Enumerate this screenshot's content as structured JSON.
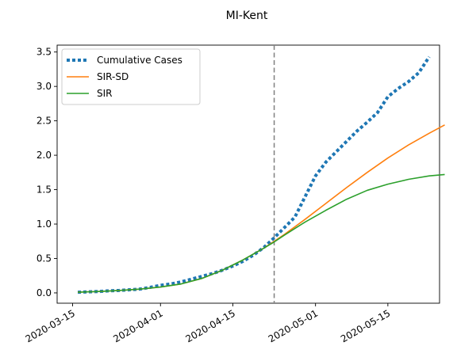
{
  "chart_data": {
    "type": "line",
    "title": "MI-Kent",
    "xlabel": "",
    "ylabel": "",
    "x_type": "date",
    "xlim": [
      "2020-03-12",
      "2020-05-25"
    ],
    "ylim": [
      -0.15,
      3.6
    ],
    "x_ticks": [
      "2020-03-15",
      "2020-04-01",
      "2020-04-15",
      "2020-05-01",
      "2020-05-15"
    ],
    "y_ticks": [
      0.0,
      0.5,
      1.0,
      1.5,
      2.0,
      2.5,
      3.0,
      3.5
    ],
    "y_tick_labels": [
      "0.0",
      "0.5",
      "1.0",
      "1.5",
      "2.0",
      "2.5",
      "3.0",
      "3.5"
    ],
    "grid": false,
    "legend_position": "upper-left",
    "vline": {
      "x": "2020-04-23",
      "style": "dashed",
      "color": "#808080"
    },
    "series": [
      {
        "name": "Cumulative Cases",
        "color": "#1f77b4",
        "style": "dotted",
        "points": [
          [
            "2020-03-16",
            0.01
          ],
          [
            "2020-03-18",
            0.015
          ],
          [
            "2020-03-20",
            0.02
          ],
          [
            "2020-03-22",
            0.03
          ],
          [
            "2020-03-24",
            0.035
          ],
          [
            "2020-03-26",
            0.045
          ],
          [
            "2020-03-28",
            0.055
          ],
          [
            "2020-03-30",
            0.08
          ],
          [
            "2020-04-01",
            0.11
          ],
          [
            "2020-04-03",
            0.13
          ],
          [
            "2020-04-05",
            0.16
          ],
          [
            "2020-04-07",
            0.2
          ],
          [
            "2020-04-09",
            0.24
          ],
          [
            "2020-04-11",
            0.28
          ],
          [
            "2020-04-13",
            0.33
          ],
          [
            "2020-04-15",
            0.39
          ],
          [
            "2020-04-17",
            0.46
          ],
          [
            "2020-04-19",
            0.55
          ],
          [
            "2020-04-21",
            0.66
          ],
          [
            "2020-04-23",
            0.8
          ],
          [
            "2020-04-25",
            0.95
          ],
          [
            "2020-04-27",
            1.1
          ],
          [
            "2020-04-29",
            1.4
          ],
          [
            "2020-05-01",
            1.7
          ],
          [
            "2020-05-03",
            1.9
          ],
          [
            "2020-05-05",
            2.05
          ],
          [
            "2020-05-07",
            2.2
          ],
          [
            "2020-05-09",
            2.35
          ],
          [
            "2020-05-11",
            2.48
          ],
          [
            "2020-05-13",
            2.62
          ],
          [
            "2020-05-15",
            2.85
          ],
          [
            "2020-05-17",
            2.97
          ],
          [
            "2020-05-19",
            3.07
          ],
          [
            "2020-05-21",
            3.2
          ],
          [
            "2020-05-23",
            3.43
          ]
        ]
      },
      {
        "name": "SIR-SD",
        "color": "#ff7f0e",
        "style": "solid",
        "points": [
          [
            "2020-03-16",
            0.01
          ],
          [
            "2020-03-20",
            0.02
          ],
          [
            "2020-03-24",
            0.035
          ],
          [
            "2020-03-28",
            0.055
          ],
          [
            "2020-04-01",
            0.085
          ],
          [
            "2020-04-05",
            0.13
          ],
          [
            "2020-04-09",
            0.21
          ],
          [
            "2020-04-13",
            0.33
          ],
          [
            "2020-04-17",
            0.48
          ],
          [
            "2020-04-21",
            0.65
          ],
          [
            "2020-04-23",
            0.75
          ],
          [
            "2020-04-25",
            0.85
          ],
          [
            "2020-04-29",
            1.07
          ],
          [
            "2020-05-03",
            1.3
          ],
          [
            "2020-05-07",
            1.53
          ],
          [
            "2020-05-11",
            1.75
          ],
          [
            "2020-05-15",
            1.96
          ],
          [
            "2020-05-19",
            2.15
          ],
          [
            "2020-05-23",
            2.32
          ],
          [
            "2020-05-26",
            2.44
          ]
        ]
      },
      {
        "name": "SIR",
        "color": "#2ca02c",
        "style": "solid",
        "points": [
          [
            "2020-03-16",
            0.01
          ],
          [
            "2020-03-20",
            0.02
          ],
          [
            "2020-03-24",
            0.035
          ],
          [
            "2020-03-28",
            0.055
          ],
          [
            "2020-04-01",
            0.085
          ],
          [
            "2020-04-05",
            0.13
          ],
          [
            "2020-04-09",
            0.21
          ],
          [
            "2020-04-13",
            0.33
          ],
          [
            "2020-04-17",
            0.48
          ],
          [
            "2020-04-21",
            0.65
          ],
          [
            "2020-04-23",
            0.74
          ],
          [
            "2020-04-25",
            0.84
          ],
          [
            "2020-04-29",
            1.03
          ],
          [
            "2020-05-03",
            1.2
          ],
          [
            "2020-05-07",
            1.36
          ],
          [
            "2020-05-11",
            1.49
          ],
          [
            "2020-05-15",
            1.58
          ],
          [
            "2020-05-19",
            1.65
          ],
          [
            "2020-05-23",
            1.7
          ],
          [
            "2020-05-26",
            1.72
          ]
        ]
      }
    ]
  }
}
